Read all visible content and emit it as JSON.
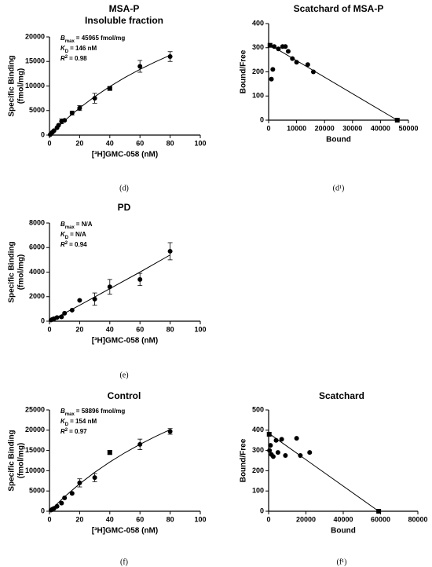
{
  "chart_data": [
    {
      "type": "scatter",
      "title": [
        "MSA-P",
        "Insoluble fraction"
      ],
      "caption": "(d)",
      "xlabel": "[³H]GMC-058 (nM)",
      "ylabel": [
        "Specific Binding",
        "(fmol/mg)"
      ],
      "xlim": [
        0,
        100
      ],
      "xticks": [
        0,
        20,
        40,
        60,
        80,
        100
      ],
      "ylim": [
        0,
        20000
      ],
      "yticks": [
        0,
        5000,
        10000,
        15000,
        20000
      ],
      "annotations": [
        {
          "symbol": "B",
          "sub": "max",
          "text": "= 45965 fmol/mg"
        },
        {
          "symbol": "K",
          "sub": "D",
          "text": "= 146 nM"
        },
        {
          "symbol": "R",
          "sup": "2",
          "text": "= 0.98"
        }
      ],
      "points": {
        "x": [
          0.5,
          1,
          2,
          3,
          5,
          6,
          8,
          10,
          15,
          20,
          30,
          40,
          60,
          80
        ],
        "y": [
          100,
          300,
          600,
          900,
          1500,
          2000,
          2800,
          3000,
          4500,
          5500,
          7500,
          9500,
          14000,
          16000
        ],
        "err": [
          null,
          null,
          null,
          null,
          null,
          null,
          500,
          null,
          400,
          500,
          1000,
          300,
          1200,
          1000
        ],
        "marker": [
          "circle",
          "circle",
          "circle",
          "circle",
          "circle",
          "circle",
          "circle",
          "circle",
          "circle",
          "circle",
          "circle",
          "square",
          "circle",
          "circle"
        ]
      },
      "curve": {
        "x": [
          0,
          10,
          20,
          30,
          40,
          50,
          60,
          70,
          80
        ],
        "y": [
          0,
          2946,
          5538,
          7835,
          9885,
          11726,
          13388,
          14897,
          16271
        ]
      }
    },
    {
      "type": "scatter",
      "title": [
        "Scatchard of MSA-P"
      ],
      "caption": "(d¹)",
      "xlabel": "Bound",
      "ylabel": [
        "Bound/Free"
      ],
      "xlim": [
        0,
        50000
      ],
      "xticks": [
        0,
        10000,
        20000,
        30000,
        40000,
        50000
      ],
      "ylim": [
        0,
        400
      ],
      "yticks": [
        0,
        100,
        200,
        300,
        400
      ],
      "points": {
        "x": [
          500,
          1000,
          1500,
          2000,
          3500,
          5000,
          6000,
          7000,
          8500,
          10000,
          14000,
          16000,
          46000
        ],
        "y": [
          310,
          170,
          210,
          305,
          295,
          305,
          305,
          285,
          255,
          240,
          230,
          200,
          0
        ],
        "err": [
          null,
          null,
          null,
          null,
          null,
          null,
          null,
          null,
          null,
          null,
          null,
          null,
          null
        ],
        "marker": [
          "square",
          "circle",
          "circle",
          "circle",
          "circle",
          "circle",
          "circle",
          "circle",
          "circle",
          "circle",
          "circle",
          "circle",
          "square"
        ]
      },
      "curve": {
        "x": [
          0,
          46000
        ],
        "y": [
          315,
          0
        ]
      }
    },
    {
      "type": "scatter",
      "title": [
        "PD"
      ],
      "caption": "(e)",
      "xlabel": "[³H]GMC-058 (nM)",
      "ylabel": [
        "Specific Binding",
        "(fmol/mg)"
      ],
      "xlim": [
        0,
        100
      ],
      "xticks": [
        0,
        20,
        40,
        60,
        80,
        100
      ],
      "ylim": [
        0,
        8000
      ],
      "yticks": [
        0,
        2000,
        4000,
        6000,
        8000
      ],
      "annotations": [
        {
          "symbol": "B",
          "sub": "max",
          "text": "= N/A"
        },
        {
          "symbol": "K",
          "sub": "D",
          "text": "= N/A"
        },
        {
          "symbol": "R",
          "sup": "2",
          "text": "= 0.94"
        }
      ],
      "points": {
        "x": [
          1,
          2,
          3,
          5,
          8,
          10,
          15,
          20,
          30,
          40,
          60,
          80
        ],
        "y": [
          100,
          150,
          200,
          300,
          350,
          650,
          900,
          1700,
          1800,
          2800,
          3400,
          5700
        ],
        "err": [
          null,
          null,
          null,
          null,
          null,
          null,
          null,
          null,
          500,
          600,
          500,
          700
        ],
        "marker": [
          "circle",
          "circle",
          "circle",
          "circle",
          "circle",
          "circle",
          "circle",
          "circle",
          "circle",
          "circle",
          "circle",
          "circle"
        ]
      },
      "curve": {
        "x": [
          0,
          20,
          40,
          60,
          80
        ],
        "y": [
          0,
          1300,
          2650,
          4000,
          5400
        ]
      }
    },
    {
      "type": "scatter",
      "title": [
        "Control"
      ],
      "caption": "(f)",
      "xlabel": "[³H]GMC-058 (nM)",
      "ylabel": [
        "Specific Binding",
        "(fmol/mg)"
      ],
      "xlim": [
        0,
        100
      ],
      "xticks": [
        0,
        20,
        40,
        60,
        80,
        100
      ],
      "ylim": [
        0,
        25000
      ],
      "yticks": [
        0,
        5000,
        10000,
        15000,
        20000,
        25000
      ],
      "annotations": [
        {
          "symbol": "B",
          "sub": "max",
          "text": "= 58896 fmol/mg"
        },
        {
          "symbol": "K",
          "sub": "D",
          "text": "= 154 nM"
        },
        {
          "symbol": "R",
          "sup": "2",
          "text": "= 0.97"
        }
      ],
      "points": {
        "x": [
          1,
          2,
          3,
          5,
          8,
          10,
          15,
          20,
          30,
          40,
          60,
          80
        ],
        "y": [
          300,
          500,
          700,
          1200,
          2000,
          3300,
          4400,
          7000,
          8300,
          14500,
          16500,
          19700
        ],
        "err": [
          null,
          null,
          null,
          null,
          null,
          null,
          null,
          1000,
          1000,
          500,
          1300,
          700
        ],
        "marker": [
          "circle",
          "circle",
          "circle",
          "circle",
          "circle",
          "circle",
          "circle",
          "circle",
          "circle",
          "square",
          "circle",
          "circle"
        ]
      },
      "curve": {
        "x": [
          0,
          10,
          20,
          30,
          40,
          50,
          60,
          70,
          80
        ],
        "y": [
          0,
          3591,
          6770,
          9602,
          12144,
          14436,
          16513,
          18405,
          20136
        ]
      }
    },
    {
      "type": "scatter",
      "title": [
        "Scatchard"
      ],
      "caption": "(f¹)",
      "xlabel": "Bound",
      "ylabel": [
        "Bound/Free"
      ],
      "xlim": [
        0,
        80000
      ],
      "xticks": [
        0,
        20000,
        40000,
        60000,
        80000
      ],
      "ylim": [
        0,
        500
      ],
      "yticks": [
        0,
        100,
        200,
        300,
        400,
        500
      ],
      "points": {
        "x": [
          300,
          500,
          1000,
          1500,
          2500,
          4000,
          5000,
          7000,
          9000,
          15000,
          17000,
          22000,
          59000
        ],
        "y": [
          380,
          300,
          325,
          280,
          270,
          350,
          290,
          355,
          275,
          360,
          275,
          290,
          0
        ],
        "err": [
          null,
          null,
          null,
          null,
          null,
          null,
          null,
          null,
          null,
          null,
          null,
          null,
          null
        ],
        "marker": [
          "square",
          "circle",
          "circle",
          "circle",
          "circle",
          "circle",
          "circle",
          "circle",
          "circle",
          "circle",
          "circle",
          "circle",
          "square"
        ]
      },
      "curve": {
        "x": [
          0,
          59000
        ],
        "y": [
          385,
          0
        ]
      }
    }
  ]
}
